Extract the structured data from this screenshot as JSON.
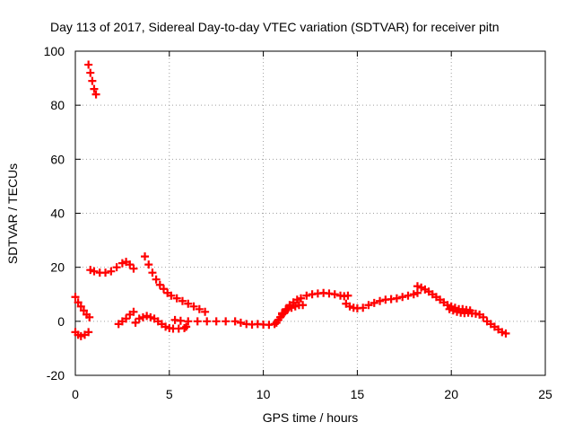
{
  "chart_data": {
    "type": "scatter",
    "title": "Day 113 of 2017, Sidereal Day-to-day VTEC variation (SDTVAR) for receiver pitn",
    "xlabel": "GPS time / hours",
    "ylabel": "SDTVAR / TECUs",
    "xlim": [
      0,
      25
    ],
    "ylim": [
      -20,
      100
    ],
    "xticks": [
      0,
      5,
      10,
      15,
      20,
      25
    ],
    "yticks": [
      -20,
      0,
      20,
      40,
      60,
      80,
      100
    ],
    "xtick_labels": [
      "0",
      "5",
      "10",
      "15",
      "20",
      "25"
    ],
    "ytick_labels": [
      "-20",
      "0",
      "20",
      "40",
      "60",
      "80",
      "100"
    ],
    "grid": true,
    "legend": "none",
    "marker": "plus",
    "color": "#ff0000",
    "series": [
      {
        "name": "seg-top",
        "points": [
          [
            0.7,
            95
          ],
          [
            0.8,
            92
          ],
          [
            0.9,
            89
          ],
          [
            1.0,
            86
          ],
          [
            1.1,
            84
          ]
        ]
      },
      {
        "name": "seg-a",
        "points": [
          [
            0.0,
            9
          ],
          [
            0.15,
            7
          ],
          [
            0.3,
            5.5
          ],
          [
            0.45,
            4
          ],
          [
            0.6,
            2.5
          ],
          [
            0.75,
            1.5
          ]
        ]
      },
      {
        "name": "seg-b",
        "points": [
          [
            0.0,
            -4
          ],
          [
            0.15,
            -5
          ],
          [
            0.3,
            -5.5
          ],
          [
            0.5,
            -5
          ],
          [
            0.7,
            -4
          ]
        ]
      },
      {
        "name": "seg-c",
        "points": [
          [
            0.8,
            19
          ],
          [
            1.0,
            18.5
          ],
          [
            1.3,
            18
          ],
          [
            1.6,
            18
          ],
          [
            1.9,
            18.5
          ],
          [
            2.2,
            20
          ],
          [
            2.5,
            21.5
          ],
          [
            2.7,
            22
          ],
          [
            2.9,
            21
          ],
          [
            3.1,
            19.5
          ]
        ]
      },
      {
        "name": "seg-d",
        "points": [
          [
            2.3,
            -1
          ],
          [
            2.5,
            0
          ],
          [
            2.7,
            1
          ],
          [
            2.9,
            2.5
          ],
          [
            3.1,
            3.5
          ]
        ]
      },
      {
        "name": "seg-e",
        "points": [
          [
            3.2,
            -0.5
          ],
          [
            3.4,
            1
          ],
          [
            3.6,
            1.5
          ],
          [
            3.8,
            2
          ],
          [
            4.0,
            1.5
          ],
          [
            4.2,
            1
          ],
          [
            4.4,
            0
          ],
          [
            4.6,
            -1
          ],
          [
            4.8,
            -2
          ],
          [
            5.0,
            -2.5
          ],
          [
            5.2,
            -2.7
          ],
          [
            5.5,
            -2.7
          ],
          [
            5.8,
            -2.5
          ],
          [
            5.9,
            -2
          ]
        ]
      },
      {
        "name": "seg-f",
        "points": [
          [
            3.7,
            24
          ],
          [
            3.9,
            21
          ],
          [
            4.1,
            18
          ],
          [
            4.3,
            15.5
          ],
          [
            4.5,
            13.5
          ],
          [
            4.7,
            12
          ],
          [
            4.9,
            10.5
          ],
          [
            5.1,
            9.5
          ],
          [
            5.4,
            8.5
          ],
          [
            5.7,
            7.5
          ],
          [
            6.0,
            6.5
          ],
          [
            6.3,
            5.5
          ],
          [
            6.6,
            4.5
          ],
          [
            6.9,
            3.5
          ]
        ]
      },
      {
        "name": "seg-g",
        "points": [
          [
            5.3,
            0.5
          ],
          [
            5.6,
            0.2
          ],
          [
            6.0,
            0
          ],
          [
            6.5,
            0
          ],
          [
            7.0,
            0
          ],
          [
            7.5,
            0
          ],
          [
            8.0,
            0
          ],
          [
            8.5,
            0
          ],
          [
            8.8,
            -0.5
          ],
          [
            9.1,
            -1
          ],
          [
            9.4,
            -1.2
          ],
          [
            9.7,
            -1
          ],
          [
            10.0,
            -1.2
          ],
          [
            10.3,
            -1.3
          ],
          [
            10.6,
            -1
          ]
        ]
      },
      {
        "name": "seg-h",
        "points": [
          [
            10.7,
            -0.5
          ],
          [
            10.8,
            0.5
          ],
          [
            10.9,
            1.5
          ],
          [
            11.0,
            2.5
          ],
          [
            11.1,
            3
          ],
          [
            11.2,
            4
          ],
          [
            11.3,
            4.5
          ],
          [
            11.5,
            5
          ],
          [
            11.7,
            5.5
          ],
          [
            11.9,
            6
          ],
          [
            12.1,
            6
          ]
        ]
      },
      {
        "name": "seg-i",
        "points": [
          [
            11.0,
            3
          ],
          [
            11.2,
            4.5
          ],
          [
            11.4,
            6
          ],
          [
            11.6,
            7
          ],
          [
            11.8,
            8
          ],
          [
            12.0,
            8.5
          ],
          [
            12.3,
            9.5
          ],
          [
            12.6,
            10
          ],
          [
            12.9,
            10.3
          ],
          [
            13.2,
            10.5
          ],
          [
            13.5,
            10.3
          ],
          [
            13.8,
            10
          ],
          [
            14.1,
            9.5
          ],
          [
            14.3,
            9.3
          ],
          [
            14.5,
            9.5
          ]
        ]
      },
      {
        "name": "seg-j",
        "points": [
          [
            14.4,
            6.5
          ],
          [
            14.6,
            5.5
          ],
          [
            14.8,
            5
          ],
          [
            15.0,
            4.8
          ],
          [
            15.3,
            5
          ],
          [
            15.6,
            6
          ],
          [
            15.9,
            6.8
          ],
          [
            16.2,
            7.5
          ],
          [
            16.5,
            8
          ],
          [
            16.8,
            8.2
          ],
          [
            17.1,
            8.5
          ],
          [
            17.4,
            9
          ],
          [
            17.7,
            9.5
          ],
          [
            18.0,
            10
          ],
          [
            18.2,
            10.5
          ]
        ]
      },
      {
        "name": "seg-k",
        "points": [
          [
            18.2,
            13
          ],
          [
            18.4,
            12.5
          ],
          [
            18.6,
            11.8
          ],
          [
            18.8,
            11
          ],
          [
            19.0,
            10
          ],
          [
            19.2,
            9
          ],
          [
            19.4,
            8
          ],
          [
            19.6,
            7
          ],
          [
            19.8,
            6
          ],
          [
            20.0,
            5.5
          ],
          [
            20.2,
            5
          ],
          [
            20.4,
            4.5
          ],
          [
            20.6,
            4.5
          ],
          [
            20.8,
            4.2
          ],
          [
            21.0,
            4
          ]
        ]
      },
      {
        "name": "seg-l",
        "points": [
          [
            19.9,
            4.5
          ],
          [
            20.1,
            4
          ],
          [
            20.3,
            3.5
          ],
          [
            20.5,
            3.2
          ],
          [
            20.7,
            3
          ],
          [
            20.9,
            3.2
          ],
          [
            21.1,
            3
          ],
          [
            21.3,
            2.8
          ],
          [
            21.5,
            2.5
          ],
          [
            21.7,
            1.5
          ],
          [
            21.9,
            0
          ],
          [
            22.1,
            -1
          ],
          [
            22.3,
            -2
          ],
          [
            22.5,
            -3
          ],
          [
            22.7,
            -4
          ],
          [
            22.9,
            -4.5
          ]
        ]
      }
    ]
  }
}
